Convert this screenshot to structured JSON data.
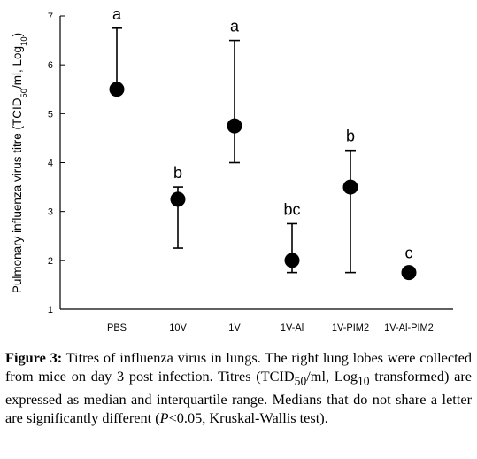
{
  "chart_data": {
    "type": "scatter",
    "ylabel": "Pulmonary influenza virus titre (TCID50/ml, Log10)",
    "ylabel_parts": [
      "Pulmonary influenza virus titre (TCID",
      "50",
      "/ml, Log",
      "10",
      ")"
    ],
    "ylim": [
      1,
      7
    ],
    "yticks": [
      1,
      2,
      3,
      4,
      5,
      6,
      7
    ],
    "grid": false,
    "categories": [
      "PBS",
      "10V",
      "1V",
      "1V-Al",
      "1V-PIM2",
      "1V-Al-PIM2"
    ],
    "series": [
      {
        "median": [
          5.5,
          3.25,
          4.75,
          2.0,
          3.5,
          1.75
        ],
        "q1": [
          5.5,
          2.25,
          4.0,
          1.75,
          1.75,
          1.75
        ],
        "q3": [
          6.75,
          3.5,
          6.5,
          2.75,
          4.25,
          1.75
        ]
      }
    ],
    "significance_letters": [
      "a",
      "b",
      "a",
      "bc",
      "b",
      "c"
    ]
  },
  "caption": {
    "label": "Figure 3:",
    "text_parts": [
      " Titres of influenza virus in lungs. The right lung lobes were collected from mice on day 3 post infection. Titres (TCID",
      "50",
      "/ml, Log",
      "10",
      " transformed) are expressed as median and interquartile range. Medians that do not share a letter are significantly different (",
      "P",
      "<0.05, Kruskal-Wallis test)."
    ]
  }
}
